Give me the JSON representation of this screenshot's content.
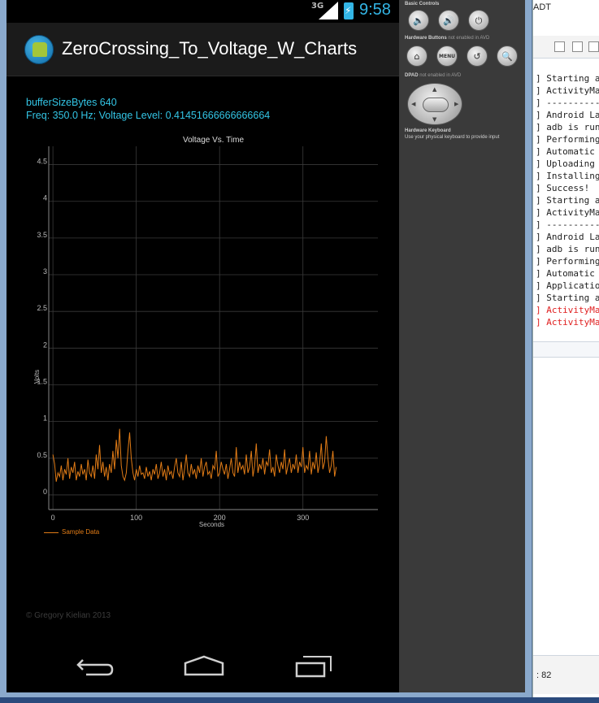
{
  "status_bar": {
    "network": "3G",
    "time": "9:58"
  },
  "app": {
    "title": "ZeroCrossing_To_Voltage_W_Charts",
    "buffer_line": "bufferSizeBytes 640",
    "freq_line": "Freq: 350.0 Hz; Voltage Level: 0.41451666666666664",
    "copyright": "© Gregory Kielian 2013"
  },
  "colors": {
    "accent": "#33b5e5",
    "info_text": "#33c5e5",
    "series": "#e07b16",
    "background": "#000000"
  },
  "chart_data": {
    "type": "line",
    "title": "Voltage Vs. Time",
    "xlabel": "Seconds",
    "ylabel": "Volts",
    "xlim": [
      -5,
      390
    ],
    "ylim": [
      -0.2,
      4.75
    ],
    "xticks": [
      0,
      100,
      200,
      300
    ],
    "yticks": [
      0,
      0.5,
      1,
      1.5,
      2,
      2.5,
      3,
      3.5,
      4,
      4.5
    ],
    "ytick_labels": [
      "0",
      "0.5",
      "1",
      "1.5",
      "2",
      "2.5",
      "3",
      "3.5",
      "4",
      "4.5"
    ],
    "grid": true,
    "legend": "bottom-left",
    "series": [
      {
        "name": "Sample Data",
        "color": "#e07b16",
        "x_start": 0,
        "x_step": 2,
        "values": [
          0.55,
          0.42,
          0.18,
          0.3,
          0.25,
          0.4,
          0.2,
          0.35,
          0.28,
          0.5,
          0.22,
          0.38,
          0.3,
          0.45,
          0.2,
          0.32,
          0.25,
          0.42,
          0.28,
          0.35,
          0.2,
          0.48,
          0.3,
          0.25,
          0.4,
          0.22,
          0.55,
          0.35,
          0.68,
          0.3,
          0.45,
          0.25,
          0.38,
          0.2,
          0.42,
          0.3,
          0.6,
          0.35,
          0.75,
          0.5,
          0.9,
          0.4,
          0.25,
          0.2,
          0.3,
          0.6,
          0.85,
          0.5,
          0.3,
          0.2,
          0.35,
          0.25,
          0.4,
          0.28,
          0.3,
          0.22,
          0.38,
          0.25,
          0.32,
          0.2,
          0.35,
          0.28,
          0.42,
          0.22,
          0.3,
          0.45,
          0.25,
          0.35,
          0.2,
          0.4,
          0.28,
          0.32,
          0.22,
          0.38,
          0.5,
          0.3,
          0.25,
          0.45,
          0.2,
          0.35,
          0.55,
          0.3,
          0.25,
          0.42,
          0.28,
          0.35,
          0.22,
          0.4,
          0.3,
          0.5,
          0.25,
          0.38,
          0.45,
          0.28,
          0.32,
          0.22,
          0.4,
          0.35,
          0.6,
          0.25,
          0.3,
          0.45,
          0.35,
          0.28,
          0.42,
          0.22,
          0.35,
          0.5,
          0.3,
          0.25,
          0.65,
          0.3,
          0.45,
          0.35,
          0.4,
          0.28,
          0.55,
          0.3,
          0.38,
          0.6,
          0.25,
          0.4,
          0.7,
          0.3,
          0.42,
          0.35,
          0.5,
          0.28,
          0.45,
          0.4,
          0.62,
          0.3,
          0.38,
          0.25,
          0.55,
          0.4,
          0.3,
          0.45,
          0.35,
          0.62,
          0.28,
          0.4,
          0.5,
          0.3,
          0.42,
          0.35,
          0.55,
          0.3,
          0.45,
          0.38,
          0.65,
          0.3,
          0.4,
          0.35,
          0.6,
          0.28,
          0.45,
          0.35,
          0.58,
          0.3,
          0.42,
          0.7,
          0.35,
          0.45,
          0.8,
          0.5,
          0.3,
          0.4,
          0.6,
          0.25,
          0.38
        ]
      }
    ]
  },
  "controls": {
    "basic_controls": "Basic Controls",
    "hardware_buttons": "Hardware Buttons",
    "hardware_buttons_note": "not enabled in AVD",
    "dpad": "DPAD",
    "dpad_note": "not enabled in AVD",
    "keyboard": "Hardware Keyboard",
    "keyboard_note": "Use your physical keyboard to provide input",
    "menu_label": "MENU"
  },
  "console": {
    "title": "ADT",
    "lines": [
      {
        "text": "] Starting a",
        "error": false
      },
      {
        "text": "] ActivityMa",
        "error": false
      },
      {
        "text": "] ----------",
        "error": false
      },
      {
        "text": "] Android La",
        "error": false
      },
      {
        "text": "] adb is run",
        "error": false
      },
      {
        "text": "] Performing",
        "error": false
      },
      {
        "text": "] Automatic ",
        "error": false
      },
      {
        "text": "] Uploading ",
        "error": false
      },
      {
        "text": "] Installing",
        "error": false
      },
      {
        "text": "] Success!",
        "error": false
      },
      {
        "text": "] Starting a",
        "error": false
      },
      {
        "text": "] ActivityMa",
        "error": false
      },
      {
        "text": "] ----------",
        "error": false
      },
      {
        "text": "] Android La",
        "error": false
      },
      {
        "text": "] adb is run",
        "error": false
      },
      {
        "text": "] Performing",
        "error": false
      },
      {
        "text": "] Automatic ",
        "error": false
      },
      {
        "text": "] Applicatio",
        "error": false
      },
      {
        "text": "] Starting a",
        "error": false
      },
      {
        "text": "] ActivityMa",
        "error": true
      },
      {
        "text": "] ActivityMa",
        "error": true
      }
    ],
    "position": ": 82"
  }
}
